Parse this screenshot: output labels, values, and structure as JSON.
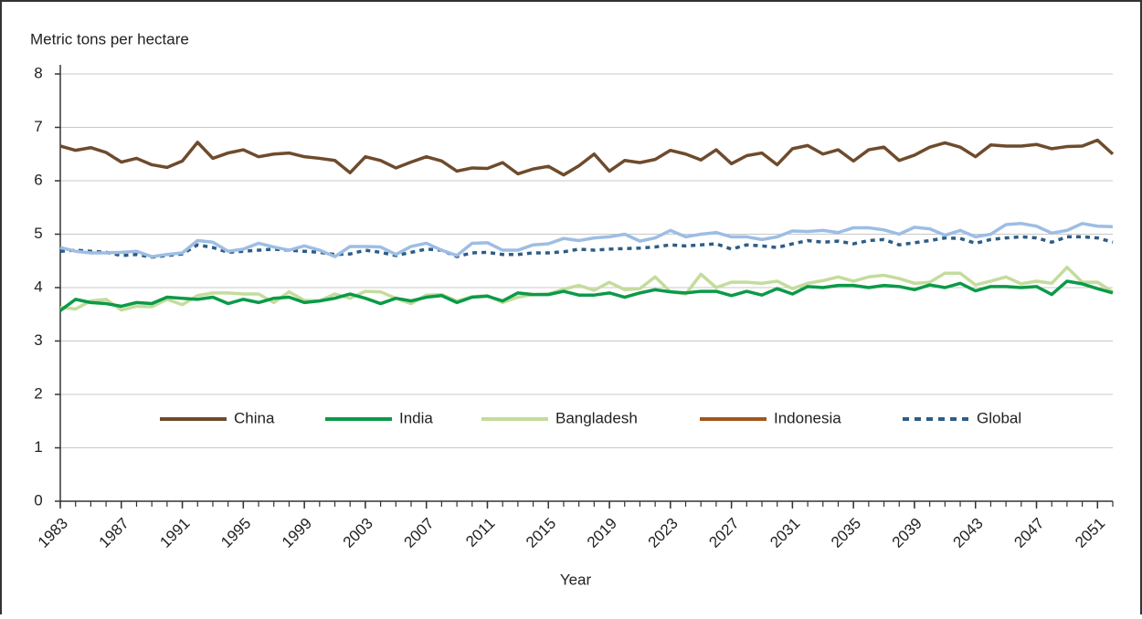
{
  "chart_data": {
    "type": "line",
    "y_label": "Metric tons per hectare",
    "x_label": "Year",
    "x": [
      1983,
      1984,
      1985,
      1986,
      1987,
      1988,
      1989,
      1990,
      1991,
      1992,
      1993,
      1994,
      1995,
      1996,
      1997,
      1998,
      1999,
      2000,
      2001,
      2002,
      2003,
      2004,
      2005,
      2006,
      2007,
      2008,
      2009,
      2010,
      2011,
      2012,
      2013,
      2014,
      2015,
      2016,
      2017,
      2018,
      2019,
      2020,
      2021,
      2022,
      2023,
      2024,
      2025,
      2026,
      2027,
      2028,
      2029,
      2030,
      2031,
      2032,
      2033,
      2034,
      2035,
      2036,
      2037,
      2038,
      2039,
      2040,
      2041,
      2042,
      2043,
      2044,
      2045,
      2046,
      2047,
      2048,
      2049,
      2050,
      2051,
      2052
    ],
    "xlim": [
      1983,
      2052
    ],
    "xticks": [
      1983,
      1987,
      1991,
      1995,
      1999,
      2003,
      2007,
      2011,
      2015,
      2019,
      2023,
      2027,
      2031,
      2035,
      2039,
      2043,
      2047,
      2051
    ],
    "ylim": [
      0,
      8
    ],
    "yticks": [
      0,
      1,
      2,
      3,
      4,
      5,
      6,
      7,
      8
    ],
    "legend": "lower center",
    "series": [
      {
        "name": "China",
        "color": "#6e4b2c",
        "values": [
          6.65,
          6.57,
          6.62,
          6.53,
          6.35,
          6.42,
          6.3,
          6.25,
          6.37,
          6.72,
          6.42,
          6.52,
          6.58,
          6.45,
          6.5,
          6.52,
          6.45,
          6.42,
          6.38,
          6.15,
          6.45,
          6.38,
          6.24,
          6.35,
          6.45,
          6.37,
          6.18,
          6.24,
          6.23,
          6.34,
          6.13,
          6.22,
          6.27,
          6.11,
          6.28,
          6.5,
          6.18,
          6.38,
          6.34,
          6.4,
          6.57,
          6.5,
          6.39,
          6.58,
          6.32,
          6.47,
          6.52,
          6.3,
          6.6,
          6.66,
          6.5,
          6.58,
          6.37,
          6.58,
          6.63,
          6.38,
          6.48,
          6.63,
          6.71,
          6.63,
          6.45,
          6.67,
          6.65,
          6.65,
          6.68,
          6.6,
          6.64,
          6.65,
          6.76,
          6.5
        ]
      },
      {
        "name": "India",
        "color": "#0b9a48",
        "values": [
          3.57,
          3.78,
          3.72,
          3.7,
          3.65,
          3.72,
          3.7,
          3.82,
          3.8,
          3.78,
          3.82,
          3.7,
          3.78,
          3.72,
          3.8,
          3.82,
          3.72,
          3.75,
          3.8,
          3.88,
          3.8,
          3.7,
          3.8,
          3.75,
          3.82,
          3.85,
          3.72,
          3.82,
          3.84,
          3.75,
          3.9,
          3.87,
          3.87,
          3.93,
          3.86,
          3.86,
          3.9,
          3.82,
          3.9,
          3.96,
          3.92,
          3.9,
          3.93,
          3.93,
          3.85,
          3.93,
          3.86,
          3.98,
          3.88,
          4.02,
          4.0,
          4.04,
          4.04,
          4.0,
          4.04,
          4.02,
          3.96,
          4.05,
          4.0,
          4.08,
          3.94,
          4.02,
          4.02,
          4.0,
          4.02,
          3.87,
          4.12,
          4.07,
          3.98,
          3.9
        ]
      },
      {
        "name": "Bangladesh",
        "color": "#c4dc9c",
        "values": [
          3.63,
          3.6,
          3.75,
          3.78,
          3.58,
          3.65,
          3.64,
          3.78,
          3.68,
          3.85,
          3.9,
          3.9,
          3.88,
          3.88,
          3.72,
          3.92,
          3.76,
          3.75,
          3.88,
          3.8,
          3.93,
          3.92,
          3.8,
          3.7,
          3.86,
          3.87,
          3.75,
          3.83,
          3.85,
          3.72,
          3.82,
          3.87,
          3.88,
          3.97,
          4.04,
          3.95,
          4.1,
          3.96,
          3.98,
          4.2,
          3.92,
          3.88,
          4.25,
          4.0,
          4.1,
          4.1,
          4.08,
          4.12,
          3.98,
          4.08,
          4.13,
          4.2,
          4.12,
          4.2,
          4.23,
          4.17,
          4.08,
          4.1,
          4.27,
          4.27,
          4.05,
          4.12,
          4.2,
          4.07,
          4.12,
          4.08,
          4.38,
          4.1,
          4.1,
          3.92
        ]
      },
      {
        "name": "Indonesia",
        "color": "#9dbde4",
        "legend_color": "#a0561e",
        "values": [
          4.75,
          4.68,
          4.65,
          4.65,
          4.66,
          4.68,
          4.58,
          4.62,
          4.65,
          4.88,
          4.85,
          4.68,
          4.72,
          4.83,
          4.76,
          4.7,
          4.78,
          4.7,
          4.58,
          4.77,
          4.77,
          4.76,
          4.62,
          4.77,
          4.83,
          4.7,
          4.6,
          4.83,
          4.84,
          4.7,
          4.7,
          4.8,
          4.82,
          4.92,
          4.88,
          4.93,
          4.95,
          5.0,
          4.87,
          4.93,
          5.07,
          4.95,
          5.0,
          5.03,
          4.95,
          4.95,
          4.9,
          4.95,
          5.06,
          5.05,
          5.07,
          5.03,
          5.12,
          5.12,
          5.08,
          5.0,
          5.13,
          5.1,
          4.98,
          5.07,
          4.95,
          5.0,
          5.18,
          5.2,
          5.15,
          5.02,
          5.07,
          5.2,
          5.15,
          5.14
        ]
      },
      {
        "name": "Global",
        "color": "#2d5d86",
        "dashed": true,
        "values": [
          4.68,
          4.7,
          4.68,
          4.66,
          4.6,
          4.62,
          4.57,
          4.6,
          4.63,
          4.8,
          4.75,
          4.66,
          4.68,
          4.7,
          4.72,
          4.7,
          4.68,
          4.66,
          4.62,
          4.63,
          4.7,
          4.66,
          4.6,
          4.66,
          4.72,
          4.7,
          4.58,
          4.65,
          4.66,
          4.62,
          4.62,
          4.65,
          4.65,
          4.67,
          4.72,
          4.7,
          4.72,
          4.73,
          4.74,
          4.76,
          4.8,
          4.78,
          4.8,
          4.82,
          4.72,
          4.8,
          4.78,
          4.75,
          4.82,
          4.88,
          4.85,
          4.87,
          4.82,
          4.88,
          4.9,
          4.8,
          4.84,
          4.88,
          4.93,
          4.92,
          4.83,
          4.9,
          4.93,
          4.95,
          4.93,
          4.85,
          4.95,
          4.95,
          4.93,
          4.85
        ]
      }
    ]
  }
}
